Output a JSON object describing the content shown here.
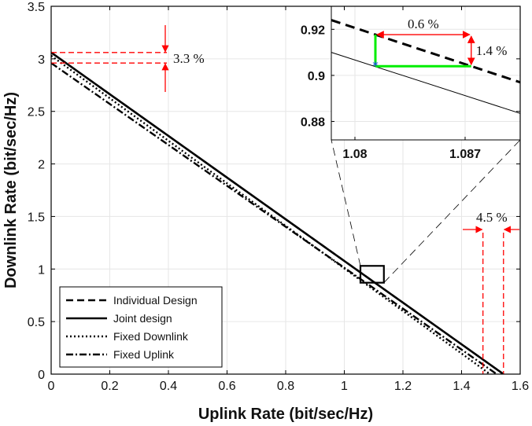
{
  "chart_data": {
    "type": "line",
    "title": "",
    "xlabel": "Uplink Rate (bit/sec/Hz)",
    "ylabel": "Downlink Rate (bit/sec/Hz)",
    "xlim": [
      0,
      1.6
    ],
    "ylim": [
      0,
      3.5
    ],
    "x_ticks": [
      "0",
      "0.2",
      "0.4",
      "0.6",
      "0.8",
      "1",
      "1.2",
      "1.4",
      "1.6"
    ],
    "y_ticks": [
      "0",
      "0.5",
      "1",
      "1.5",
      "2",
      "2.5",
      "3",
      "3.5"
    ],
    "grid": true,
    "legend_position": "bottom-left",
    "series": [
      {
        "name": "Individual Design",
        "style": "dashed",
        "x": [
          0,
          1.543
        ],
        "y": [
          3.06,
          0
        ]
      },
      {
        "name": "Joint design",
        "style": "solid",
        "x": [
          0,
          1.543
        ],
        "y": [
          3.06,
          0
        ]
      },
      {
        "name": "Fixed Downlink",
        "style": "dotted",
        "x": [
          0,
          1.497
        ],
        "y": [
          3.03,
          0
        ]
      },
      {
        "name": "Fixed Uplink",
        "style": "dashdot",
        "x": [
          0,
          1.52
        ],
        "y": [
          2.96,
          0
        ]
      }
    ],
    "annotations": [
      {
        "text": "3.3 %",
        "at_axis": "y",
        "values": [
          2.96,
          3.06
        ]
      },
      {
        "text": "4.5 %",
        "at_axis": "x",
        "values": [
          1.473,
          1.543
        ]
      }
    ],
    "zoom_box": {
      "x": [
        1.055,
        1.135
      ],
      "y": [
        0.87,
        1.03
      ]
    },
    "inset": {
      "xlim": [
        1.0785,
        1.0905
      ],
      "ylim": [
        0.872,
        0.93
      ],
      "x_ticks": [
        "1.08",
        "1.087"
      ],
      "y_ticks": [
        "0.88",
        "0.9",
        "0.92"
      ],
      "dashed_line": {
        "x": [
          1.0785,
          1.0905
        ],
        "y": [
          0.924,
          0.897
        ]
      },
      "solid_line": {
        "x": [
          1.0785,
          1.0905
        ],
        "y": [
          0.91,
          0.8835
        ]
      },
      "marker": {
        "x": 1.0813,
        "y": 0.904
      },
      "annotations": [
        {
          "text": "0.6 %",
          "type": "horizontal"
        },
        {
          "text": "1.4 %",
          "type": "vertical"
        }
      ],
      "highlight_color": "#00ee00"
    },
    "annotation_color": "#ff0000"
  }
}
